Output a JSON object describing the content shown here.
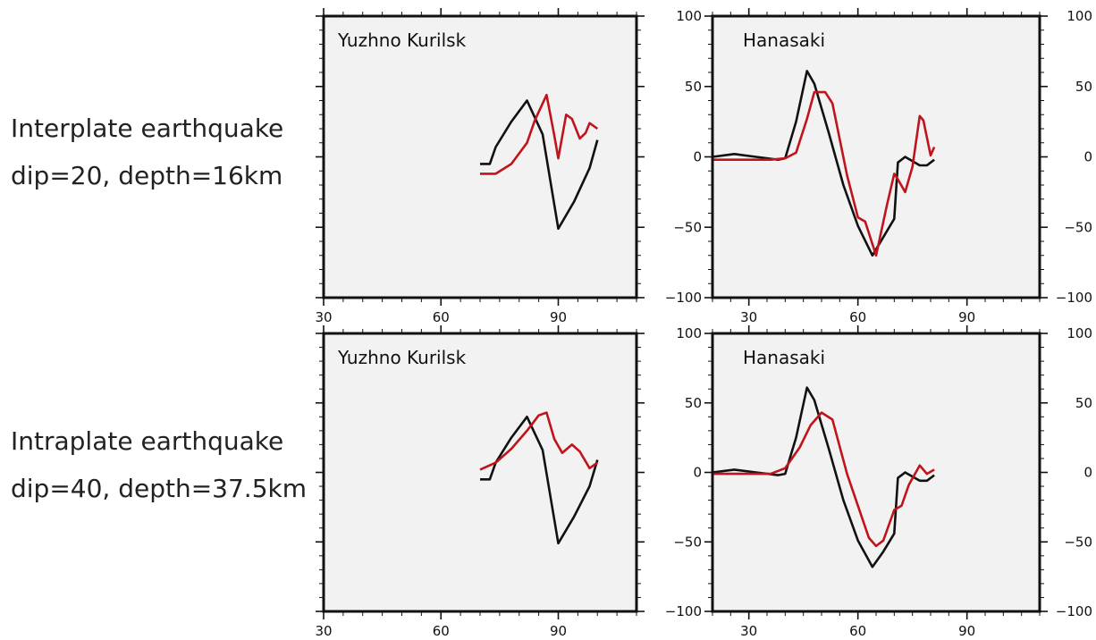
{
  "rows": [
    {
      "line1": "Interplate earthquake",
      "line2": "dip=20, depth=16km"
    },
    {
      "line1": "Intraplate earthquake",
      "line2": "dip=40, depth=37.5km"
    }
  ],
  "colors": {
    "observed": "#111111",
    "synthetic": "#c0141c",
    "panel_bg": "#f2f2f2",
    "frame": "#111111"
  },
  "chart_data": [
    {
      "type": "line",
      "title": "Yuzhno Kurilsk",
      "xlim": [
        30,
        110
      ],
      "ylim": [
        -100,
        100
      ],
      "xticks": [
        30,
        60,
        90
      ],
      "yticks": [],
      "series": [
        {
          "color": "#111111",
          "points": [
            [
              70,
              -5
            ],
            [
              72.5,
              -5
            ],
            [
              74,
              7
            ],
            [
              78,
              25
            ],
            [
              82,
              40
            ],
            [
              86,
              16
            ],
            [
              90,
              -51
            ],
            [
              94,
              -32
            ],
            [
              98,
              -8
            ],
            [
              100,
              12
            ]
          ]
        },
        {
          "color": "#c0141c",
          "points": [
            [
              70,
              -12
            ],
            [
              74,
              -12
            ],
            [
              78,
              -5
            ],
            [
              82,
              10
            ],
            [
              84,
              26
            ],
            [
              87,
              44
            ],
            [
              89,
              15
            ],
            [
              90,
              -1
            ],
            [
              92,
              30
            ],
            [
              93.5,
              27
            ],
            [
              95.5,
              13
            ],
            [
              97,
              17
            ],
            [
              98,
              24
            ],
            [
              100,
              20
            ]
          ]
        }
      ]
    },
    {
      "type": "line",
      "title": "Hanasaki",
      "xlim": [
        20,
        110
      ],
      "ylim": [
        -100,
        100
      ],
      "xticks": [
        30,
        60,
        90
      ],
      "yticks": [
        -100,
        -50,
        0,
        50,
        100
      ],
      "right_yticks": [
        -100,
        -50,
        0,
        50,
        100
      ],
      "series": [
        {
          "color": "#111111",
          "points": [
            [
              20,
              0
            ],
            [
              26,
              2
            ],
            [
              32,
              0
            ],
            [
              38,
              -2
            ],
            [
              40,
              -1
            ],
            [
              43,
              25
            ],
            [
              46,
              61
            ],
            [
              48,
              52
            ],
            [
              52,
              17
            ],
            [
              56,
              -20
            ],
            [
              60,
              -49
            ],
            [
              64,
              -70
            ],
            [
              67,
              -57
            ],
            [
              70,
              -44
            ],
            [
              71,
              -4
            ],
            [
              73,
              0
            ],
            [
              77,
              -6
            ],
            [
              79,
              -6
            ],
            [
              81,
              -2
            ]
          ]
        },
        {
          "color": "#c0141c",
          "points": [
            [
              20,
              -2
            ],
            [
              36,
              -2
            ],
            [
              40,
              -1
            ],
            [
              43,
              3
            ],
            [
              46,
              27
            ],
            [
              48,
              46
            ],
            [
              51,
              46
            ],
            [
              53,
              38
            ],
            [
              57,
              -13
            ],
            [
              60,
              -43
            ],
            [
              62,
              -46
            ],
            [
              65,
              -70
            ],
            [
              68,
              -34
            ],
            [
              70,
              -12
            ],
            [
              71,
              -16
            ],
            [
              73,
              -25
            ],
            [
              75,
              -7
            ],
            [
              77,
              29
            ],
            [
              78,
              26
            ],
            [
              80,
              1
            ],
            [
              81,
              7
            ]
          ]
        }
      ]
    },
    {
      "type": "line",
      "title": "Yuzhno Kurilsk",
      "xlim": [
        30,
        110
      ],
      "ylim": [
        -100,
        100
      ],
      "xticks": [
        30,
        60,
        90
      ],
      "yticks": [],
      "series": [
        {
          "color": "#111111",
          "points": [
            [
              70,
              -5
            ],
            [
              72.5,
              -5
            ],
            [
              74,
              7
            ],
            [
              78,
              25
            ],
            [
              82,
              40
            ],
            [
              86,
              16
            ],
            [
              90,
              -51
            ],
            [
              94,
              -32
            ],
            [
              98,
              -10
            ],
            [
              100,
              9
            ]
          ]
        },
        {
          "color": "#c0141c",
          "points": [
            [
              70,
              2
            ],
            [
              74,
              7
            ],
            [
              78,
              17
            ],
            [
              82,
              30
            ],
            [
              85,
              41
            ],
            [
              87,
              43
            ],
            [
              89,
              24
            ],
            [
              91,
              14
            ],
            [
              93.5,
              20
            ],
            [
              95.5,
              15
            ],
            [
              98,
              3
            ],
            [
              100,
              7
            ]
          ]
        }
      ]
    },
    {
      "type": "line",
      "title": "Hanasaki",
      "xlim": [
        20,
        110
      ],
      "ylim": [
        -100,
        100
      ],
      "xticks": [
        30,
        60,
        90
      ],
      "yticks": [
        -100,
        -50,
        0,
        50,
        100
      ],
      "right_yticks": [
        -100,
        -50,
        0,
        50,
        100
      ],
      "series": [
        {
          "color": "#111111",
          "points": [
            [
              20,
              0
            ],
            [
              26,
              2
            ],
            [
              32,
              0
            ],
            [
              38,
              -2
            ],
            [
              40,
              -1
            ],
            [
              43,
              25
            ],
            [
              46,
              61
            ],
            [
              48,
              52
            ],
            [
              52,
              17
            ],
            [
              56,
              -20
            ],
            [
              60,
              -49
            ],
            [
              64,
              -68
            ],
            [
              67,
              -57
            ],
            [
              70,
              -44
            ],
            [
              71,
              -4
            ],
            [
              73,
              0
            ],
            [
              77,
              -6
            ],
            [
              79,
              -6
            ],
            [
              81,
              -2
            ]
          ]
        },
        {
          "color": "#c0141c",
          "points": [
            [
              20,
              -1
            ],
            [
              36,
              -1
            ],
            [
              40,
              3
            ],
            [
              44,
              18
            ],
            [
              47,
              34
            ],
            [
              50,
              43
            ],
            [
              53,
              38
            ],
            [
              57,
              -1
            ],
            [
              60,
              -24
            ],
            [
              63,
              -47
            ],
            [
              65,
              -53
            ],
            [
              67,
              -49
            ],
            [
              70,
              -27
            ],
            [
              72,
              -24
            ],
            [
              74,
              -9
            ],
            [
              77,
              5
            ],
            [
              79,
              -1
            ],
            [
              81,
              2
            ]
          ]
        }
      ]
    }
  ]
}
